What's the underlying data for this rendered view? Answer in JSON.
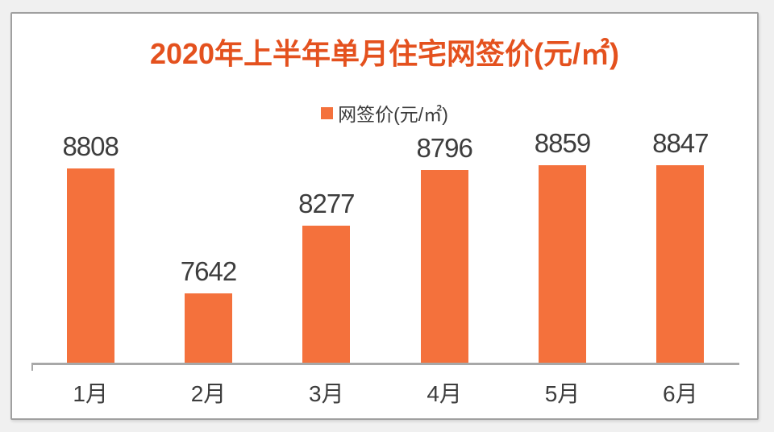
{
  "title": "2020年上半年单月住宅网签价(元/㎡)",
  "legend": {
    "label": "网签价(元/㎡)"
  },
  "colors": {
    "title": "#e4511e",
    "bar": "#f4713c",
    "axis": "#a8a8a8",
    "value_label": "#3d3d3d",
    "background": "#f0f0f0"
  },
  "chart_data": {
    "type": "bar",
    "title": "2020年上半年单月住宅网签价(元/㎡)",
    "categories": [
      "1月",
      "2月",
      "3月",
      "4月",
      "5月",
      "6月"
    ],
    "series": [
      {
        "name": "网签价(元/㎡)",
        "values": [
          8808,
          7642,
          8277,
          8796,
          8859,
          8847
        ]
      }
    ],
    "ylim": [
      7000,
      9200
    ],
    "grid": false,
    "legend_position": "top",
    "data_labels": true
  }
}
